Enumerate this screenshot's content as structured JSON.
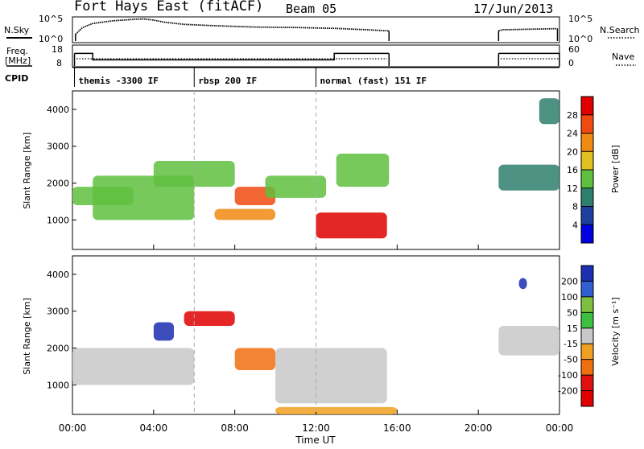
{
  "header": {
    "station": "Fort Hays East (fitACF)",
    "beam": "Beam 05",
    "date": "17/Jun/2013"
  },
  "time_axis": {
    "label": "Time UT",
    "ticks": [
      "00:00",
      "04:00",
      "08:00",
      "12:00",
      "16:00",
      "20:00",
      "00:00"
    ],
    "tick_hours": [
      0,
      4,
      8,
      12,
      16,
      20,
      24
    ],
    "range_hours": [
      0,
      24
    ]
  },
  "strips": {
    "nsky": {
      "label": "N.Sky",
      "right_label": "N.Search",
      "left_ticks": [
        "10^5",
        "10^0"
      ],
      "right_ticks": [
        "10^5",
        "10^0"
      ]
    },
    "freq": {
      "label_line1": "Freq.",
      "label_line2": "[MHz]",
      "left_ticks": [
        "18",
        "8"
      ],
      "right_ticks": [
        "60",
        "0"
      ],
      "right_label": "Nave"
    },
    "cpid": {
      "label": "CPID",
      "segments": [
        {
          "start_hour": 0.1,
          "end_hour": 6.0,
          "label": "themis -3300 IF"
        },
        {
          "start_hour": 6.0,
          "end_hour": 12.0,
          "label": "rbsp 200 IF"
        },
        {
          "start_hour": 12.0,
          "end_hour": 24.0,
          "label": "normal (fast) 151 IF"
        }
      ]
    }
  },
  "panels": {
    "power": {
      "ylabel": "Slant Range [km]",
      "yticks": [
        "1000",
        "2000",
        "3000",
        "4000"
      ],
      "ytick_values": [
        1000,
        2000,
        3000,
        4000
      ],
      "yrange": [
        200,
        4500
      ],
      "cbar_label": "Power [dB]",
      "cbar_ticks": [
        "4",
        "8",
        "12",
        "16",
        "20",
        "24",
        "28"
      ],
      "cbar_values": [
        4,
        8,
        12,
        16,
        20,
        24,
        28
      ],
      "cbar_range": [
        0,
        32
      ],
      "cbar_colors": [
        "#0000e0",
        "#1f3fa0",
        "#2f7f6f",
        "#5fbf3f",
        "#e0c020",
        "#f08a10",
        "#f04a10",
        "#e00000"
      ]
    },
    "velocity": {
      "ylabel": "Slant Range [km]",
      "yticks": [
        "1000",
        "2000",
        "3000",
        "4000"
      ],
      "ytick_values": [
        1000,
        2000,
        3000,
        4000
      ],
      "yrange": [
        200,
        4500
      ],
      "cbar_label": "Velocity [m s⁻¹]",
      "cbar_ticks": [
        "200",
        "100",
        "50",
        "15",
        "-15",
        "-50",
        "-100",
        "-200"
      ],
      "cbar_colors": [
        "#1b2fb0",
        "#2f5fd0",
        "#7fbf3f",
        "#3fbf3f",
        "#c8c8c8",
        "#f0a020",
        "#f07010",
        "#e01010",
        "#e00000"
      ]
    }
  },
  "chart_data": [
    {
      "type": "line",
      "title": "N.Sky",
      "x_units": "UT hours",
      "series": [
        {
          "name": "N.Sky",
          "x": [
            0.15,
            0.5,
            1.0,
            2.0,
            3.0,
            3.5,
            4.0,
            4.5,
            5.5,
            7.0,
            9.0,
            11.0,
            13.0,
            14.5,
            15.6,
            21.0,
            21.2,
            23.9
          ],
          "y": [
            0.3,
            0.6,
            0.78,
            0.9,
            0.96,
            0.98,
            0.93,
            0.84,
            0.74,
            0.68,
            0.62,
            0.6,
            0.56,
            0.5,
            0.45,
            0.45,
            0.5,
            0.55
          ]
        }
      ],
      "ylim": [
        0,
        1
      ],
      "gaps_hours": [
        [
          15.6,
          21.0
        ]
      ]
    },
    {
      "type": "line",
      "title": "Freq. [MHz]",
      "x_units": "UT hours",
      "series": [
        {
          "name": "Freq.",
          "x": [
            0.1,
            1.0,
            1.0,
            12.9,
            12.9,
            15.6,
            21.0,
            24.0
          ],
          "y": [
            14.5,
            14.5,
            11.2,
            11.2,
            14.5,
            14.5,
            14.5,
            14.5
          ]
        }
      ],
      "ylim": [
        8,
        18
      ],
      "gaps_hours": [
        [
          15.6,
          21.0
        ]
      ]
    },
    {
      "type": "heatmap",
      "title": "Power [dB]",
      "x_units": "UT hours",
      "y_units": "km",
      "regions": [
        {
          "t0": 0.0,
          "t1": 3.0,
          "r0": 1400,
          "r1": 1900,
          "value": 12
        },
        {
          "t0": 1.0,
          "t1": 6.0,
          "r0": 1000,
          "r1": 2200,
          "value": 14
        },
        {
          "t0": 4.0,
          "t1": 8.0,
          "r0": 1900,
          "r1": 2600,
          "value": 12
        },
        {
          "t0": 8.0,
          "t1": 10.0,
          "r0": 1400,
          "r1": 1900,
          "value": 26
        },
        {
          "t0": 7.0,
          "t1": 10.0,
          "r0": 1000,
          "r1": 1300,
          "value": 20
        },
        {
          "t0": 9.5,
          "t1": 12.5,
          "r0": 1600,
          "r1": 2200,
          "value": 14
        },
        {
          "t0": 12.0,
          "t1": 15.5,
          "r0": 500,
          "r1": 1200,
          "value": 30
        },
        {
          "t0": 13.0,
          "t1": 15.6,
          "r0": 1900,
          "r1": 2800,
          "value": 12
        },
        {
          "t0": 21.0,
          "t1": 24.0,
          "r0": 1800,
          "r1": 2500,
          "value": 10
        },
        {
          "t0": 23.0,
          "t1": 24.0,
          "r0": 3600,
          "r1": 4300,
          "value": 8
        }
      ]
    },
    {
      "type": "heatmap",
      "title": "Velocity [m s⁻¹]",
      "x_units": "UT hours",
      "y_units": "km",
      "regions": [
        {
          "t0": 0.0,
          "t1": 6.0,
          "r0": 1000,
          "r1": 2000,
          "value": 0
        },
        {
          "t0": 4.0,
          "t1": 5.0,
          "r0": 2200,
          "r1": 2700,
          "value": 200
        },
        {
          "t0": 5.5,
          "t1": 8.0,
          "r0": 2600,
          "r1": 3000,
          "value": -200
        },
        {
          "t0": 8.0,
          "t1": 10.0,
          "r0": 1400,
          "r1": 2000,
          "value": -60
        },
        {
          "t0": 10.0,
          "t1": 15.5,
          "r0": 500,
          "r1": 2000,
          "value": 0
        },
        {
          "t0": 10.0,
          "t1": 16.0,
          "r0": 200,
          "r1": 400,
          "value": -40
        },
        {
          "t0": 21.0,
          "t1": 24.0,
          "r0": 1800,
          "r1": 2600,
          "value": 0
        },
        {
          "t0": 22.0,
          "t1": 22.4,
          "r0": 3600,
          "r1": 3900,
          "value": 220
        }
      ]
    }
  ]
}
